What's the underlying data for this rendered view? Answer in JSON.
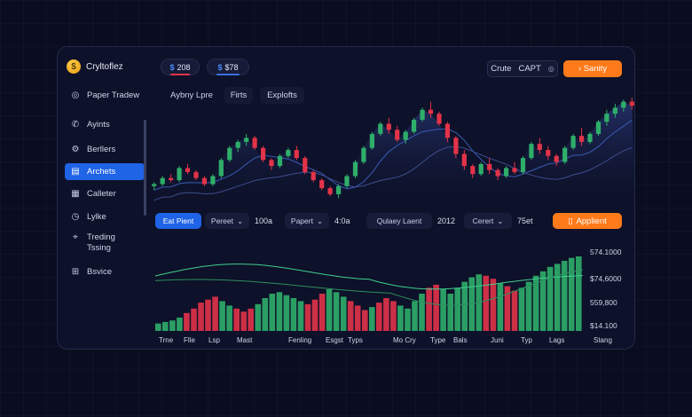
{
  "app": {
    "name": "Cryltoflez",
    "logo_glyph": "$"
  },
  "sidebar": {
    "items": [
      {
        "label": "Paper Tradew",
        "icon": "globe-icon"
      },
      {
        "label": "Ayints",
        "icon": "phone-icon"
      },
      {
        "label": "Berllers",
        "icon": "gear-icon"
      },
      {
        "label": "Archets",
        "icon": "chart-icon",
        "active": true
      },
      {
        "label": "Calleter",
        "icon": "calendar-icon"
      },
      {
        "label": "Lylke",
        "icon": "clock-icon"
      },
      {
        "label": "Treding\nTssing",
        "icon": "tag-icon"
      },
      {
        "label": "Bsvice",
        "icon": "grid-icon"
      }
    ]
  },
  "header": {
    "balance_a": {
      "symbol": "$",
      "value": "208"
    },
    "balance_b": {
      "symbol": "$",
      "value": "$78"
    },
    "crute_label": "Crute",
    "capt_label": "CAPT",
    "capt_suffix": "◎",
    "cta_label": "› Sanity",
    "tabs": [
      "Aybny Lpre",
      "Firts",
      "Explofts"
    ]
  },
  "controls": {
    "button_primary": "Eat Pient",
    "dropdown_1": "Pereet",
    "value_1": "100a",
    "dropdown_2": "Papert",
    "value_2": "4:0a",
    "dropdown_3": "Qulaey Laent",
    "value_3": "2012",
    "dropdown_4": "Cerert",
    "value_4": "75et",
    "apply_label": "Applient"
  },
  "volume_axis": {
    "ticks": [
      "574.1000",
      "$74,6000",
      "559,800",
      "$14.100"
    ]
  },
  "x_axis_labels": [
    "Trne",
    "Flle",
    "Lsp",
    "Mast",
    "Fenling",
    "Esgst",
    "Typs",
    "Mo Cry",
    "Type",
    "Bals",
    "Juni",
    "Typ",
    "Lags",
    "Stang"
  ],
  "colors": {
    "up": "#2fae6a",
    "down": "#e23349",
    "accent_blue": "#1f63e6",
    "accent_orange": "#ff7a1a"
  },
  "chart_data": [
    {
      "type": "candlestick",
      "title": "",
      "series": [
        {
          "name": "",
          "ohlc": [
            [
              52,
              54,
              50,
              53
            ],
            [
              53,
              57,
              52,
              56
            ],
            [
              56,
              58,
              54,
              55
            ],
            [
              55,
              62,
              54,
              61
            ],
            [
              61,
              63,
              58,
              59
            ],
            [
              59,
              60,
              55,
              56
            ],
            [
              56,
              57,
              52,
              53
            ],
            [
              53,
              58,
              52,
              57
            ],
            [
              57,
              66,
              56,
              65
            ],
            [
              65,
              72,
              64,
              71
            ],
            [
              71,
              75,
              69,
              74
            ],
            [
              74,
              78,
              72,
              76
            ],
            [
              76,
              77,
              70,
              71
            ],
            [
              71,
              72,
              64,
              65
            ],
            [
              65,
              66,
              60,
              62
            ],
            [
              62,
              68,
              61,
              67
            ],
            [
              67,
              71,
              66,
              70
            ],
            [
              70,
              72,
              65,
              66
            ],
            [
              66,
              67,
              58,
              59
            ],
            [
              59,
              60,
              54,
              55
            ],
            [
              55,
              56,
              50,
              51
            ],
            [
              51,
              52,
              47,
              48
            ],
            [
              48,
              53,
              46,
              52
            ],
            [
              52,
              58,
              51,
              57
            ],
            [
              57,
              65,
              56,
              64
            ],
            [
              64,
              72,
              63,
              71
            ],
            [
              71,
              79,
              70,
              78
            ],
            [
              78,
              84,
              77,
              83
            ],
            [
              83,
              86,
              78,
              80
            ],
            [
              80,
              82,
              74,
              75
            ],
            [
              75,
              80,
              73,
              79
            ],
            [
              79,
              86,
              78,
              85
            ],
            [
              85,
              91,
              84,
              90
            ],
            [
              90,
              94,
              86,
              88
            ],
            [
              88,
              89,
              82,
              83
            ],
            [
              83,
              84,
              74,
              76
            ],
            [
              76,
              77,
              66,
              68
            ],
            [
              68,
              70,
              60,
              62
            ],
            [
              62,
              63,
              56,
              58
            ],
            [
              58,
              64,
              57,
              63
            ],
            [
              63,
              66,
              58,
              60
            ],
            [
              60,
              61,
              55,
              57
            ],
            [
              57,
              62,
              56,
              61
            ],
            [
              61,
              64,
              58,
              59
            ],
            [
              59,
              67,
              58,
              66
            ],
            [
              66,
              74,
              65,
              73
            ],
            [
              73,
              76,
              68,
              70
            ],
            [
              70,
              72,
              65,
              67
            ],
            [
              67,
              68,
              62,
              64
            ],
            [
              64,
              72,
              63,
              71
            ],
            [
              71,
              78,
              70,
              77
            ],
            [
              77,
              81,
              72,
              74
            ],
            [
              74,
              79,
              73,
              78
            ],
            [
              78,
              85,
              77,
              84
            ],
            [
              84,
              90,
              82,
              88
            ],
            [
              88,
              93,
              86,
              91
            ],
            [
              91,
              95,
              89,
              94
            ],
            [
              94,
              96,
              90,
              92
            ]
          ]
        }
      ],
      "overlay_lines": [
        "moving-average-1",
        "moving-average-2"
      ],
      "grid": false
    },
    {
      "type": "bar",
      "title": "",
      "ylim": [
        0,
        100
      ],
      "y_ticks": [
        "574.1000",
        "$74,6000",
        "559,800",
        "$14.100"
      ],
      "series": [
        {
          "name": "",
          "values": [
            10,
            12,
            14,
            18,
            24,
            30,
            38,
            42,
            46,
            40,
            34,
            30,
            26,
            30,
            36,
            44,
            50,
            52,
            48,
            44,
            40,
            36,
            42,
            50,
            56,
            52,
            46,
            40,
            34,
            28,
            32,
            38,
            44,
            40,
            34,
            30,
            40,
            50,
            58,
            62,
            56,
            50,
            58,
            66,
            72,
            76,
            74,
            70,
            64,
            60,
            54,
            58,
            66,
            74,
            80,
            86,
            90,
            94,
            98,
            100
          ],
          "directions": [
            "u",
            "u",
            "u",
            "u",
            "d",
            "d",
            "d",
            "d",
            "d",
            "u",
            "u",
            "d",
            "d",
            "d",
            "u",
            "u",
            "u",
            "u",
            "u",
            "u",
            "u",
            "d",
            "d",
            "d",
            "u",
            "u",
            "u",
            "d",
            "d",
            "d",
            "u",
            "d",
            "d",
            "d",
            "u",
            "u",
            "u",
            "u",
            "d",
            "d",
            "u",
            "u",
            "u",
            "u",
            "u",
            "u",
            "d",
            "d",
            "u",
            "d",
            "d",
            "u",
            "u",
            "u",
            "u",
            "u",
            "u",
            "u",
            "u",
            "u"
          ]
        }
      ],
      "overlay_lines": [
        "volume-line-1",
        "volume-line-2"
      ]
    }
  ]
}
